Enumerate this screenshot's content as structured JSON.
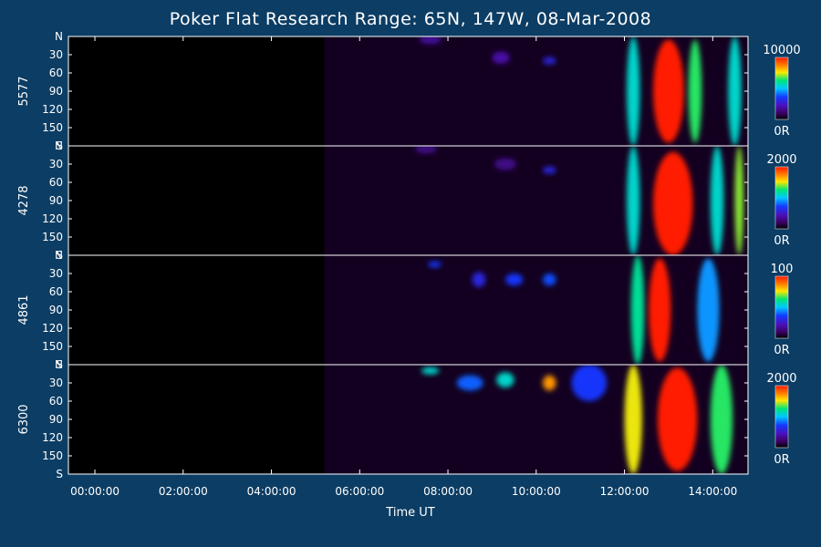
{
  "title": "Poker Flat Research Range: 65N, 147W, 08-Mar-2008",
  "x_axis_title": "Time UT",
  "colors": {
    "background": "#0c3d64",
    "axis": "#ffffff",
    "panel_fill": "#000000"
  },
  "chart_data": {
    "type": "heatmap",
    "title": "Poker Flat Research Range: 65N, 147W, 08-Mar-2008",
    "xlabel": "Time UT",
    "x_ticks": [
      "00:00:00",
      "02:00:00",
      "04:00:00",
      "06:00:00",
      "08:00:00",
      "10:00:00",
      "12:00:00",
      "14:00:00"
    ],
    "x_range_hours": [
      -0.6,
      14.8
    ],
    "y_ticks": [
      "N",
      "30",
      "60",
      "90",
      "120",
      "150",
      "S"
    ],
    "y_range": [
      0,
      180
    ],
    "colormap": "rainbow (black-purple-blue-cyan-green-yellow-red)",
    "panels": [
      {
        "ylabel": "5577",
        "cbar_max": "10000",
        "cbar_min": "0R",
        "data_start_hour": 5.2,
        "features": [
          {
            "center_hour": 7.6,
            "center_deg": 5,
            "level": 0.18,
            "width_h": 0.5,
            "height_deg": 15
          },
          {
            "center_hour": 9.2,
            "center_deg": 35,
            "level": 0.2,
            "width_h": 0.4,
            "height_deg": 20
          },
          {
            "center_hour": 10.3,
            "center_deg": 40,
            "level": 0.3,
            "width_h": 0.3,
            "height_deg": 12
          },
          {
            "center_hour": 12.2,
            "center_deg": 90,
            "level": 0.55,
            "width_h": 0.3,
            "height_deg": 180
          },
          {
            "center_hour": 13.0,
            "center_deg": 90,
            "level": 1.0,
            "width_h": 0.7,
            "height_deg": 170
          },
          {
            "center_hour": 13.6,
            "center_deg": 90,
            "level": 0.65,
            "width_h": 0.3,
            "height_deg": 170
          },
          {
            "center_hour": 14.5,
            "center_deg": 90,
            "level": 0.55,
            "width_h": 0.3,
            "height_deg": 180
          }
        ]
      },
      {
        "ylabel": "4278",
        "cbar_max": "2000",
        "cbar_min": "0R",
        "data_start_hour": 5.2,
        "features": [
          {
            "center_hour": 7.5,
            "center_deg": 5,
            "level": 0.15,
            "width_h": 0.5,
            "height_deg": 15
          },
          {
            "center_hour": 9.3,
            "center_deg": 30,
            "level": 0.15,
            "width_h": 0.5,
            "height_deg": 20
          },
          {
            "center_hour": 10.3,
            "center_deg": 40,
            "level": 0.3,
            "width_h": 0.3,
            "height_deg": 12
          },
          {
            "center_hour": 12.2,
            "center_deg": 90,
            "level": 0.55,
            "width_h": 0.3,
            "height_deg": 180
          },
          {
            "center_hour": 13.1,
            "center_deg": 95,
            "level": 1.0,
            "width_h": 0.9,
            "height_deg": 170
          },
          {
            "center_hour": 14.1,
            "center_deg": 90,
            "level": 0.55,
            "width_h": 0.3,
            "height_deg": 180
          },
          {
            "center_hour": 14.6,
            "center_deg": 90,
            "level": 0.7,
            "width_h": 0.2,
            "height_deg": 180
          }
        ]
      },
      {
        "ylabel": "4861",
        "cbar_max": "100",
        "cbar_min": "0R",
        "data_start_hour": 5.2,
        "features": [
          {
            "center_hour": 7.7,
            "center_deg": 15,
            "level": 0.35,
            "width_h": 0.3,
            "height_deg": 10
          },
          {
            "center_hour": 8.7,
            "center_deg": 40,
            "level": 0.3,
            "width_h": 0.3,
            "height_deg": 25
          },
          {
            "center_hour": 9.5,
            "center_deg": 40,
            "level": 0.35,
            "width_h": 0.4,
            "height_deg": 20
          },
          {
            "center_hour": 10.3,
            "center_deg": 40,
            "level": 0.38,
            "width_h": 0.3,
            "height_deg": 20
          },
          {
            "center_hour": 12.3,
            "center_deg": 90,
            "level": 0.6,
            "width_h": 0.3,
            "height_deg": 180
          },
          {
            "center_hour": 12.8,
            "center_deg": 90,
            "level": 1.0,
            "width_h": 0.5,
            "height_deg": 170
          },
          {
            "center_hour": 13.9,
            "center_deg": 90,
            "level": 0.45,
            "width_h": 0.5,
            "height_deg": 170
          }
        ]
      },
      {
        "ylabel": "6300",
        "cbar_max": "2000",
        "cbar_min": "0R",
        "data_start_hour": 5.2,
        "features": [
          {
            "center_hour": 7.6,
            "center_deg": 10,
            "level": 0.55,
            "width_h": 0.4,
            "height_deg": 12
          },
          {
            "center_hour": 8.5,
            "center_deg": 30,
            "level": 0.4,
            "width_h": 0.6,
            "height_deg": 25
          },
          {
            "center_hour": 9.3,
            "center_deg": 25,
            "level": 0.55,
            "width_h": 0.4,
            "height_deg": 25
          },
          {
            "center_hour": 10.3,
            "center_deg": 30,
            "level": 0.85,
            "width_h": 0.3,
            "height_deg": 25
          },
          {
            "center_hour": 11.2,
            "center_deg": 30,
            "level": 0.35,
            "width_h": 0.8,
            "height_deg": 60
          },
          {
            "center_hour": 12.2,
            "center_deg": 90,
            "level": 0.75,
            "width_h": 0.4,
            "height_deg": 180
          },
          {
            "center_hour": 13.2,
            "center_deg": 90,
            "level": 1.0,
            "width_h": 0.9,
            "height_deg": 170
          },
          {
            "center_hour": 14.2,
            "center_deg": 90,
            "level": 0.65,
            "width_h": 0.5,
            "height_deg": 180
          }
        ]
      }
    ]
  }
}
